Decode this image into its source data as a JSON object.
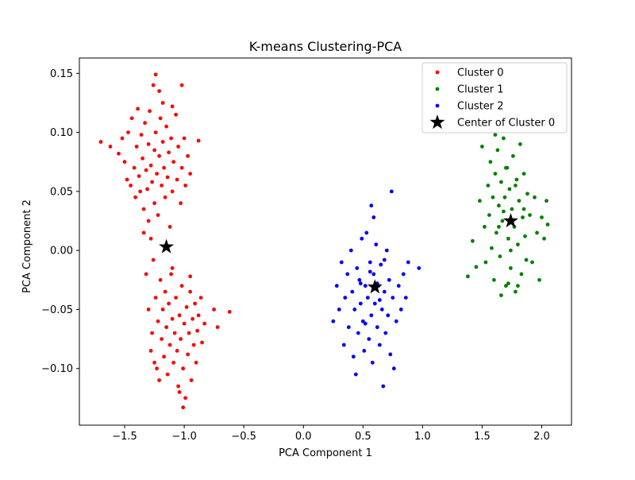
{
  "chart_data": {
    "type": "scatter",
    "title": "K-means Clustering-PCA",
    "xlabel": "PCA Component 1",
    "ylabel": "PCA Component 2",
    "xlim": [
      -1.88,
      2.25
    ],
    "ylim": [
      -0.148,
      0.163
    ],
    "xticks": [
      -1.5,
      -1.0,
      -0.5,
      0.0,
      0.5,
      1.0,
      1.5,
      2.0
    ],
    "xtick_labels": [
      "−1.5",
      "−1.0",
      "−0.5",
      "0.0",
      "0.5",
      "1.0",
      "1.5",
      "2.0"
    ],
    "yticks": [
      -0.1,
      -0.05,
      0.0,
      0.05,
      0.1,
      0.15
    ],
    "ytick_labels": [
      "−0.10",
      "−0.05",
      "0.00",
      "0.05",
      "0.10",
      "0.15"
    ],
    "grid": false,
    "legend_position": "top-right",
    "series": [
      {
        "name": "Cluster 0",
        "color": "#ff0000",
        "marker": "dot",
        "values": [
          [
            -1.7,
            0.092
          ],
          [
            -1.62,
            0.088
          ],
          [
            -1.55,
            0.082
          ],
          [
            -1.52,
            0.095
          ],
          [
            -1.5,
            0.075
          ],
          [
            -1.48,
            0.06
          ],
          [
            -1.47,
            0.1
          ],
          [
            -1.45,
            0.055
          ],
          [
            -1.44,
            0.112
          ],
          [
            -1.42,
            0.07
          ],
          [
            -1.41,
            0.045
          ],
          [
            -1.4,
            0.088
          ],
          [
            -1.39,
            0.12
          ],
          [
            -1.38,
            0.063
          ],
          [
            -1.37,
            0.05
          ],
          [
            -1.36,
            0.098
          ],
          [
            -1.35,
            0.078
          ],
          [
            -1.34,
            0.035
          ],
          [
            -1.33,
            0.108
          ],
          [
            -1.32,
            0.068
          ],
          [
            -1.31,
            0.052
          ],
          [
            -1.3,
            0.09
          ],
          [
            -1.3,
            0.025
          ],
          [
            -1.29,
            0.118
          ],
          [
            -1.28,
            0.072
          ],
          [
            -1.27,
            0.058
          ],
          [
            -1.26,
            0.14
          ],
          [
            -1.25,
            0.085
          ],
          [
            -1.25,
            0.04
          ],
          [
            -1.24,
            0.1
          ],
          [
            -1.23,
            0.065
          ],
          [
            -1.22,
            0.03
          ],
          [
            -1.21,
            0.08
          ],
          [
            -1.2,
            0.112
          ],
          [
            -1.19,
            0.055
          ],
          [
            -1.18,
            0.092
          ],
          [
            -1.17,
            0.07
          ],
          [
            -1.16,
            0.045
          ],
          [
            -1.15,
            0.105
          ],
          [
            -1.14,
            0.062
          ],
          [
            -1.13,
            0.083
          ],
          [
            -1.12,
            0.02
          ],
          [
            -1.11,
            0.095
          ],
          [
            -1.1,
            0.05
          ],
          [
            -1.09,
            0.075
          ],
          [
            -1.07,
            0.115
          ],
          [
            -1.06,
            0.06
          ],
          [
            -1.05,
            0.088
          ],
          [
            -1.03,
            0.04
          ],
          [
            -1.02,
            0.07
          ],
          [
            -1.0,
            0.095
          ],
          [
            -0.99,
            0.055
          ],
          [
            -0.97,
            0.08
          ],
          [
            -0.95,
            0.065
          ],
          [
            -0.88,
            0.093
          ],
          [
            -1.34,
            0.015
          ],
          [
            -1.28,
            0.01
          ],
          [
            -1.21,
            0.135
          ],
          [
            -1.18,
            0.125
          ],
          [
            -1.1,
            0.122
          ],
          [
            -1.32,
            -0.02
          ],
          [
            -1.3,
            -0.05
          ],
          [
            -1.28,
            -0.085
          ],
          [
            -1.27,
            -0.07
          ],
          [
            -1.25,
            -0.095
          ],
          [
            -1.24,
            -0.04
          ],
          [
            -1.22,
            -0.06
          ],
          [
            -1.21,
            -0.11
          ],
          [
            -1.2,
            -0.025
          ],
          [
            -1.19,
            -0.075
          ],
          [
            -1.18,
            -0.05
          ],
          [
            -1.17,
            -0.09
          ],
          [
            -1.16,
            -0.035
          ],
          [
            -1.15,
            -0.065
          ],
          [
            -1.14,
            -0.105
          ],
          [
            -1.13,
            -0.045
          ],
          [
            -1.12,
            -0.08
          ],
          [
            -1.11,
            -0.02
          ],
          [
            -1.1,
            -0.058
          ],
          [
            -1.09,
            -0.095
          ],
          [
            -1.08,
            -0.07
          ],
          [
            -1.07,
            -0.04
          ],
          [
            -1.06,
            -0.085
          ],
          [
            -1.05,
            -0.115
          ],
          [
            -1.04,
            -0.055
          ],
          [
            -1.03,
            -0.075
          ],
          [
            -1.02,
            -0.03
          ],
          [
            -1.01,
            -0.1
          ],
          [
            -1.0,
            -0.062
          ],
          [
            -0.99,
            -0.125
          ],
          [
            -0.98,
            -0.048
          ],
          [
            -0.97,
            -0.088
          ],
          [
            -0.96,
            -0.07
          ],
          [
            -0.95,
            -0.035
          ],
          [
            -0.94,
            -0.11
          ],
          [
            -0.93,
            -0.058
          ],
          [
            -0.92,
            -0.08
          ],
          [
            -0.91,
            -0.045
          ],
          [
            -0.9,
            -0.095
          ],
          [
            -0.89,
            -0.068
          ],
          [
            -0.88,
            -0.055
          ],
          [
            -0.86,
            -0.04
          ],
          [
            -0.85,
            -0.078
          ],
          [
            -0.83,
            -0.062
          ],
          [
            -0.75,
            -0.05
          ],
          [
            -0.72,
            -0.065
          ],
          [
            -0.62,
            -0.052
          ],
          [
            -1.01,
            -0.133
          ],
          [
            -1.04,
            -0.12
          ],
          [
            -1.23,
            -0.1
          ],
          [
            -1.02,
            0.14
          ],
          [
            -1.24,
            0.149
          ],
          [
            -1.26,
            -0.008
          ],
          [
            -1.1,
            -0.015
          ],
          [
            -0.95,
            -0.022
          ]
        ]
      },
      {
        "name": "Cluster 1",
        "color": "#008000",
        "marker": "dot",
        "values": [
          [
            1.38,
            -0.022
          ],
          [
            1.42,
            0.008
          ],
          [
            1.45,
            -0.014
          ],
          [
            1.48,
            0.042
          ],
          [
            1.5,
            0.088
          ],
          [
            1.52,
            0.02
          ],
          [
            1.53,
            -0.01
          ],
          [
            1.55,
            0.055
          ],
          [
            1.56,
            0.03
          ],
          [
            1.57,
            0.075
          ],
          [
            1.58,
            0.002
          ],
          [
            1.59,
            0.045
          ],
          [
            1.6,
            -0.025
          ],
          [
            1.61,
            0.065
          ],
          [
            1.62,
            0.015
          ],
          [
            1.63,
            0.085
          ],
          [
            1.64,
            0.038
          ],
          [
            1.65,
            -0.005
          ],
          [
            1.66,
            0.058
          ],
          [
            1.67,
            0.025
          ],
          [
            1.68,
            0.095
          ],
          [
            1.69,
            0.045
          ],
          [
            1.7,
            -0.03
          ],
          [
            1.71,
            0.07
          ],
          [
            1.72,
            0.01
          ],
          [
            1.73,
            0.052
          ],
          [
            1.74,
            -0.015
          ],
          [
            1.75,
            0.035
          ],
          [
            1.76,
            0.08
          ],
          [
            1.77,
            0.02
          ],
          [
            1.78,
            -0.035
          ],
          [
            1.79,
            0.06
          ],
          [
            1.8,
            0.005
          ],
          [
            1.81,
            0.042
          ],
          [
            1.82,
            0.09
          ],
          [
            1.83,
            -0.02
          ],
          [
            1.84,
            0.028
          ],
          [
            1.85,
            0.065
          ],
          [
            1.86,
            0.012
          ],
          [
            1.87,
            -0.008
          ],
          [
            1.88,
            0.048
          ],
          [
            1.9,
            0.03
          ],
          [
            1.92,
            -0.01
          ],
          [
            1.94,
            0.045
          ],
          [
            1.96,
            0.015
          ],
          [
            1.98,
            -0.025
          ],
          [
            2.0,
            0.028
          ],
          [
            2.02,
            0.01
          ],
          [
            2.04,
            0.042
          ],
          [
            2.05,
            0.022
          ],
          [
            1.66,
            -0.038
          ],
          [
            1.72,
            -0.028
          ],
          [
            1.8,
            -0.03
          ],
          [
            1.61,
            0.098
          ],
          [
            1.7,
            0.07
          ],
          [
            1.78,
            0.055
          ],
          [
            1.68,
            0.033
          ],
          [
            1.74,
            0.0
          ],
          [
            1.64,
            0.02
          ],
          [
            1.85,
            0.035
          ]
        ]
      },
      {
        "name": "Cluster 2",
        "color": "#0000ff",
        "marker": "dot",
        "values": [
          [
            0.25,
            -0.06
          ],
          [
            0.28,
            -0.03
          ],
          [
            0.3,
            -0.05
          ],
          [
            0.32,
            -0.01
          ],
          [
            0.34,
            -0.08
          ],
          [
            0.35,
            -0.04
          ],
          [
            0.37,
            -0.02
          ],
          [
            0.38,
            -0.065
          ],
          [
            0.4,
            0.0
          ],
          [
            0.41,
            -0.035
          ],
          [
            0.42,
            -0.09
          ],
          [
            0.43,
            -0.05
          ],
          [
            0.44,
            -0.105
          ],
          [
            0.45,
            -0.015
          ],
          [
            0.46,
            -0.07
          ],
          [
            0.47,
            -0.025
          ],
          [
            0.48,
            -0.045
          ],
          [
            0.49,
            0.01
          ],
          [
            0.5,
            -0.06
          ],
          [
            0.51,
            -0.085
          ],
          [
            0.52,
            -0.03
          ],
          [
            0.53,
            0.015
          ],
          [
            0.54,
            -0.04
          ],
          [
            0.55,
            -0.075
          ],
          [
            0.56,
            -0.01
          ],
          [
            0.57,
            -0.055
          ],
          [
            0.58,
            -0.095
          ],
          [
            0.59,
            -0.02
          ],
          [
            0.6,
            -0.045
          ],
          [
            0.61,
            0.005
          ],
          [
            0.62,
            -0.065
          ],
          [
            0.63,
            -0.03
          ],
          [
            0.64,
            -0.08
          ],
          [
            0.65,
            -0.012
          ],
          [
            0.66,
            -0.05
          ],
          [
            0.67,
            -0.115
          ],
          [
            0.68,
            -0.035
          ],
          [
            0.69,
            -0.07
          ],
          [
            0.7,
            0.0
          ],
          [
            0.71,
            -0.055
          ],
          [
            0.72,
            -0.025
          ],
          [
            0.73,
            -0.088
          ],
          [
            0.74,
            0.05
          ],
          [
            0.75,
            -0.04
          ],
          [
            0.76,
            -0.1
          ],
          [
            0.78,
            -0.06
          ],
          [
            0.8,
            -0.03
          ],
          [
            0.82,
            -0.05
          ],
          [
            0.84,
            -0.02
          ],
          [
            0.86,
            -0.04
          ],
          [
            0.88,
            -0.01
          ],
          [
            0.97,
            -0.015
          ],
          [
            0.57,
            0.038
          ],
          [
            0.59,
            0.028
          ],
          [
            0.48,
            -0.028
          ],
          [
            0.52,
            -0.062
          ],
          [
            0.64,
            -0.042
          ],
          [
            0.56,
            -0.018
          ],
          [
            0.68,
            -0.008
          ],
          [
            0.62,
            -0.028
          ]
        ]
      }
    ],
    "centers": {
      "name": "Center of Cluster 0",
      "color": "#000000",
      "marker": "star",
      "values": [
        [
          -1.15,
          0.003
        ],
        [
          1.74,
          0.025
        ],
        [
          0.6,
          -0.031
        ]
      ]
    }
  }
}
